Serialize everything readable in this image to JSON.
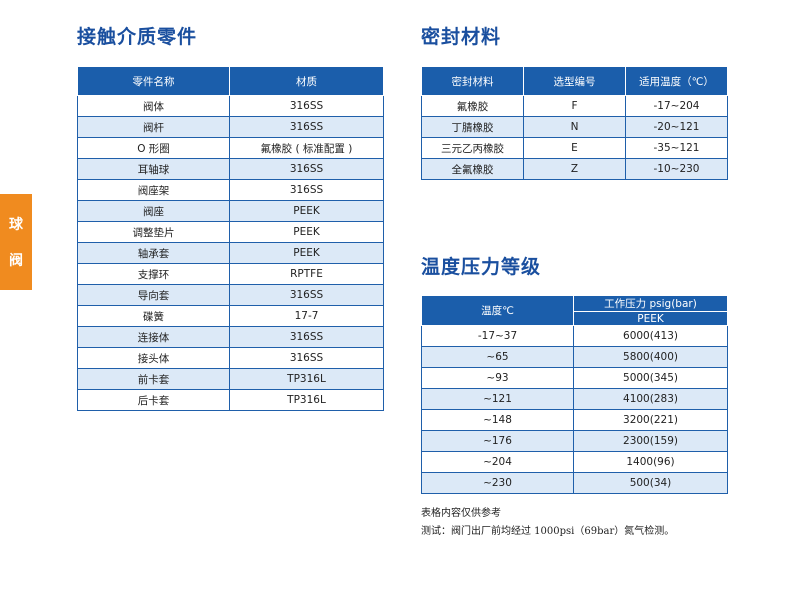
{
  "side_tab": {
    "chars": [
      "球",
      "阀"
    ]
  },
  "contact_media": {
    "title": "接触介质零件",
    "headers": [
      "零件名称",
      "材质"
    ],
    "rows": [
      [
        "阀体",
        "316SS"
      ],
      [
        "阀杆",
        "316SS"
      ],
      [
        "O 形圈",
        "氟橡胶 ( 标准配置 )"
      ],
      [
        "耳轴球",
        "316SS"
      ],
      [
        "阀座架",
        "316SS"
      ],
      [
        "阀座",
        "PEEK"
      ],
      [
        "调整垫片",
        "PEEK"
      ],
      [
        "轴承套",
        "PEEK"
      ],
      [
        "支撑环",
        "RPTFE"
      ],
      [
        "导向套",
        "316SS"
      ],
      [
        "碟簧",
        "17-7"
      ],
      [
        "连接体",
        "316SS"
      ],
      [
        "接头体",
        "316SS"
      ],
      [
        "前卡套",
        "TP316L"
      ],
      [
        "后卡套",
        "TP316L"
      ]
    ]
  },
  "seal_material": {
    "title": "密封材料",
    "headers": [
      "密封材料",
      "选型编号",
      "适用温度（℃）"
    ],
    "rows": [
      [
        "氟橡胶",
        "F",
        "-17~204"
      ],
      [
        "丁腈橡胶",
        "N",
        "-20~121"
      ],
      [
        "三元乙丙橡胶",
        "E",
        "-35~121"
      ],
      [
        "全氟橡胶",
        "Z",
        "-10~230"
      ]
    ]
  },
  "pressure_rating": {
    "title": "温度压力等级",
    "header_temp": "温度℃",
    "header_pressure": "工作压力 psig(bar)",
    "header_material": "PEEK",
    "rows": [
      [
        "-17~37",
        "6000(413)"
      ],
      [
        "~65",
        "5800(400)"
      ],
      [
        "~93",
        "5000(345)"
      ],
      [
        "~121",
        "4100(283)"
      ],
      [
        "~148",
        "3200(221)"
      ],
      [
        "~176",
        "2300(159)"
      ],
      [
        "~204",
        "1400(96)"
      ],
      [
        "~230",
        "500(34)"
      ]
    ]
  },
  "notes": {
    "line1": "表格内容仅供参考",
    "line2": "测试：阀门出厂前均经过 1000psi（69bar）氮气检测。"
  },
  "colors": {
    "header_blue": "#1b5eab",
    "stripe": "#dce9f7",
    "title_blue": "#1a4f9f",
    "tab_orange": "#f08b1f"
  }
}
